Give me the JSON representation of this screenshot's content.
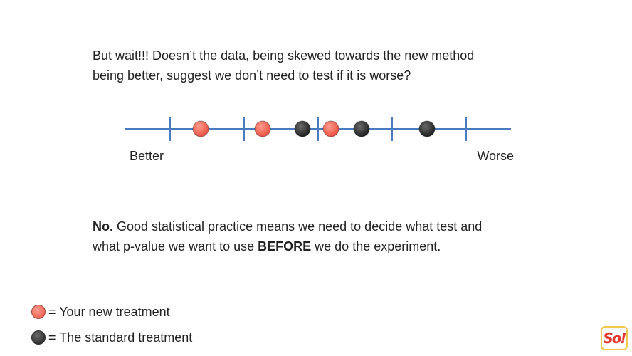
{
  "question": {
    "line1": "But wait!!! Doesn’t the data, being skewed towards the new method",
    "line2": "being better, suggest we don’t need to test if it is worse?"
  },
  "number_line": {
    "left_label": "Better",
    "right_label": "Worse",
    "tick_count": 5,
    "points": [
      {
        "group": "new",
        "order": 1
      },
      {
        "group": "new",
        "order": 2
      },
      {
        "group": "standard",
        "order": 3
      },
      {
        "group": "new",
        "order": 4
      },
      {
        "group": "standard",
        "order": 5
      },
      {
        "group": "standard",
        "order": 6
      }
    ]
  },
  "answer": {
    "lead": "No.",
    "line1_rest": " Good statistical practice means we need to decide what test and",
    "line2_start": "what p-value we want to use ",
    "emphasis": "BEFORE",
    "line2_end": " we do the experiment."
  },
  "legend": {
    "new_label": "= Your new treatment",
    "standard_label": "= The standard treatment"
  },
  "colors": {
    "new": "#f26b5b",
    "standard": "#2f2f2f",
    "axis": "#4a7bbf"
  }
}
